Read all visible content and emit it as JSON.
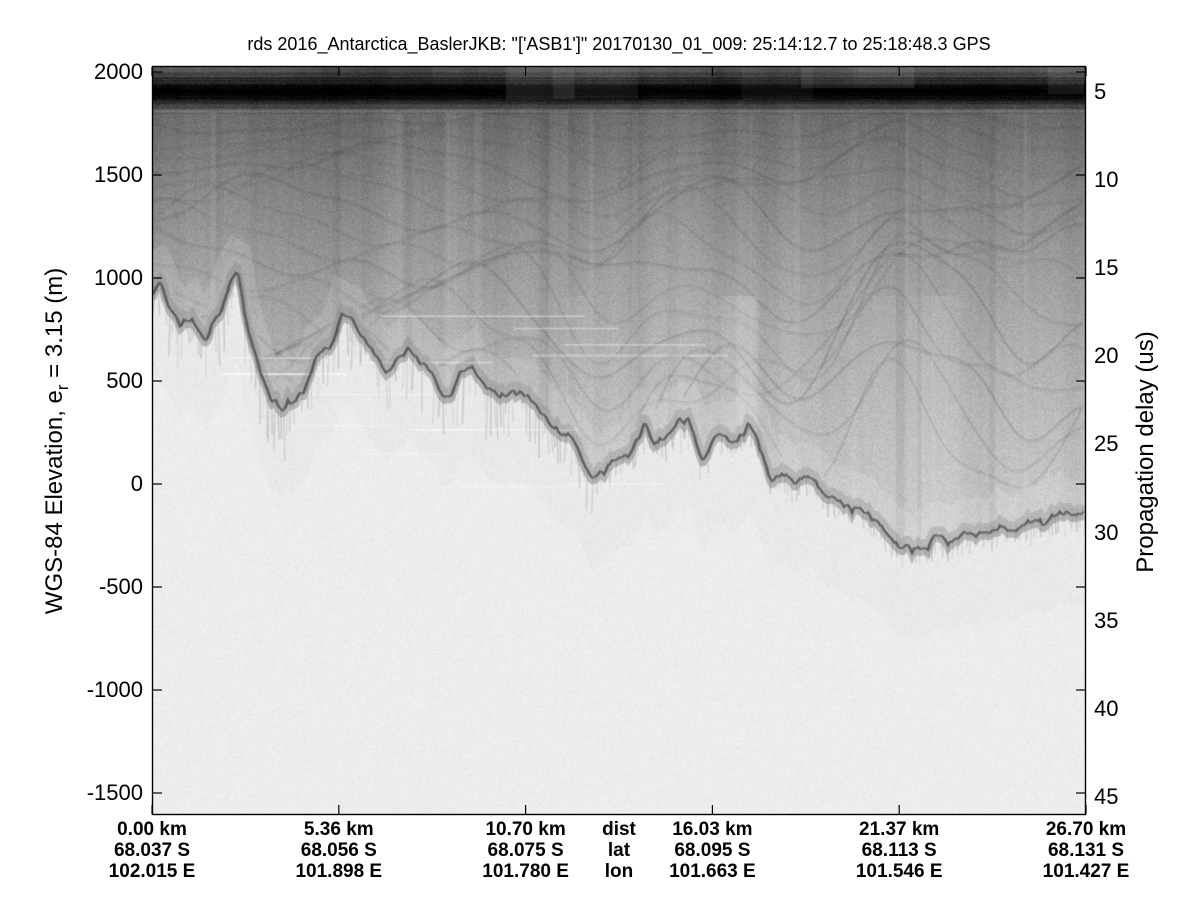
{
  "figure": {
    "background": "#ffffff",
    "ink_color": "#000000",
    "axis_color": "#000000"
  },
  "chart_data": {
    "type": "heatmap",
    "subtype": "radar-echogram",
    "title": "rds 2016_Antarctica_BaslerJKB: \"['ASB1']\"  20170130_01_009: 25:14:12.7 to 25:18:48.3 GPS",
    "ylabel_left": {
      "text": "WGS-84 Elevation, e_r = 3.15 (m)",
      "prefix": "WGS-84 Elevation, e",
      "sub": "r",
      "suffix": " = 3.15 (m)"
    },
    "ylabel_right": "Propagation delay (us)",
    "grid": false,
    "legend": null,
    "xlim_km": [
      0,
      26.7
    ],
    "ylim_elevation_m": [
      -1607,
      2029
    ],
    "right_axis_delay_us_range": [
      3.5,
      45.9
    ],
    "left_axis_ticks_m": [
      2000,
      1500,
      1000,
      500,
      0,
      -500,
      -1000,
      -1500
    ],
    "right_axis_ticks_us": [
      5,
      10,
      15,
      20,
      25,
      30,
      35,
      40,
      45
    ],
    "x_axis_row_labels": [
      "dist",
      "lat",
      "lon"
    ],
    "x_axis_columns": [
      {
        "dist": "0.00 km",
        "lat": "68.037 S",
        "lon": "102.015 E"
      },
      {
        "dist": "5.36 km",
        "lat": "68.056 S",
        "lon": "101.898 E"
      },
      {
        "dist": "10.70 km",
        "lat": "68.075 S",
        "lon": "101.780 E"
      },
      {
        "dist": "16.03 km",
        "lat": "68.095 S",
        "lon": "101.663 E"
      },
      {
        "dist": "21.37 km",
        "lat": "68.113 S",
        "lon": "101.546 E"
      },
      {
        "dist": "26.70 km",
        "lat": "68.131 S",
        "lon": "101.427 E"
      }
    ],
    "surface_elevation_m": 1903,
    "internal_layer_elevations_m": [
      1755,
      1690,
      1625,
      1560,
      1490,
      1420,
      1345,
      1270,
      1190,
      1105,
      1015,
      925,
      835,
      750,
      660,
      560,
      460,
      360
    ],
    "bed_profile": {
      "x_km": [
        0.0,
        0.23,
        0.51,
        0.8,
        1.14,
        1.51,
        1.89,
        2.23,
        2.46,
        2.74,
        3.03,
        3.37,
        3.74,
        4.09,
        4.37,
        4.75,
        5.09,
        5.46,
        5.72,
        6.0,
        6.29,
        6.66,
        7.03,
        7.32,
        7.66,
        8.0,
        8.38,
        8.66,
        8.95,
        9.15,
        9.52,
        9.95,
        10.29,
        10.66,
        11.09,
        11.52,
        11.95,
        12.32,
        12.66,
        12.95,
        13.24,
        13.66,
        14.09,
        14.38,
        14.75,
        15.09,
        15.47,
        15.75,
        16.09,
        16.38,
        16.72,
        17.09,
        17.44,
        17.66,
        18.01,
        18.38,
        18.75,
        19.09,
        19.44,
        19.81,
        20.18,
        20.58,
        20.95,
        21.38,
        21.72,
        22.04,
        22.38,
        22.81,
        23.18,
        23.61,
        24.04,
        24.47,
        24.87,
        25.33,
        25.73,
        26.1,
        26.39,
        26.7
      ],
      "elevation_m": [
        893,
        951,
        845,
        748,
        806,
        675,
        835,
        942,
        976,
        748,
        602,
        456,
        398,
        417,
        481,
        602,
        675,
        820,
        772,
        675,
        626,
        553,
        602,
        651,
        592,
        515,
        432,
        466,
        529,
        544,
        456,
        417,
        447,
        408,
        345,
        286,
        214,
        126,
        68,
        58,
        92,
        141,
        262,
        189,
        223,
        272,
        286,
        141,
        252,
        272,
        165,
        252,
        141,
        29,
        68,
        -5,
        19,
        -29,
        -44,
        -78,
        -102,
        -175,
        -223,
        -257,
        -282,
        -296,
        -272,
        -262,
        -233,
        -214,
        -194,
        -214,
        -184,
        -199,
        -150,
        -136,
        -117,
        -136
      ]
    },
    "colormap": "grayscale (dark = strong radar return)"
  }
}
